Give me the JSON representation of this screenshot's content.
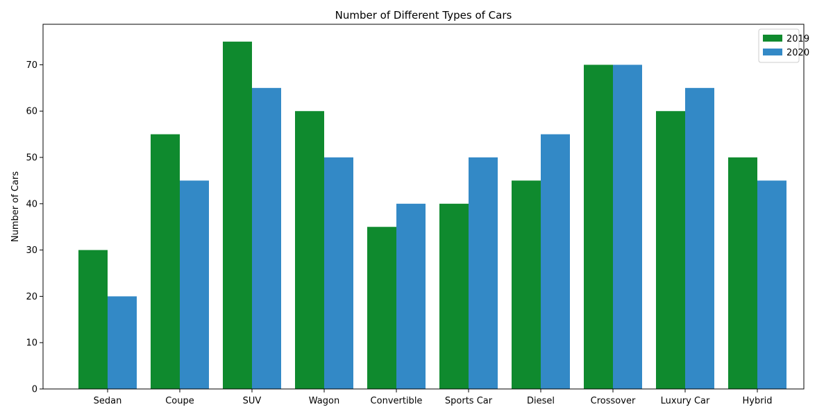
{
  "chart_data": {
    "type": "bar",
    "title": "Number of Different Types of Cars",
    "xlabel": "",
    "ylabel": "Number of Cars",
    "categories": [
      "Sedan",
      "Coupe",
      "SUV",
      "Wagon",
      "Convertible",
      "Sports Car",
      "Diesel",
      "Crossover",
      "Luxury Car",
      "Hybrid"
    ],
    "series": [
      {
        "name": "2019",
        "color": "#0f8a2e",
        "values": [
          30,
          55,
          75,
          60,
          35,
          40,
          45,
          70,
          60,
          50
        ]
      },
      {
        "name": "2020",
        "color": "#3389c6",
        "values": [
          20,
          45,
          65,
          50,
          40,
          50,
          55,
          70,
          65,
          45
        ]
      }
    ],
    "ylim": [
      0,
      78.75
    ],
    "yticks": [
      0,
      10,
      20,
      30,
      40,
      50,
      60,
      70
    ],
    "grid": false,
    "legend": "top-right"
  }
}
